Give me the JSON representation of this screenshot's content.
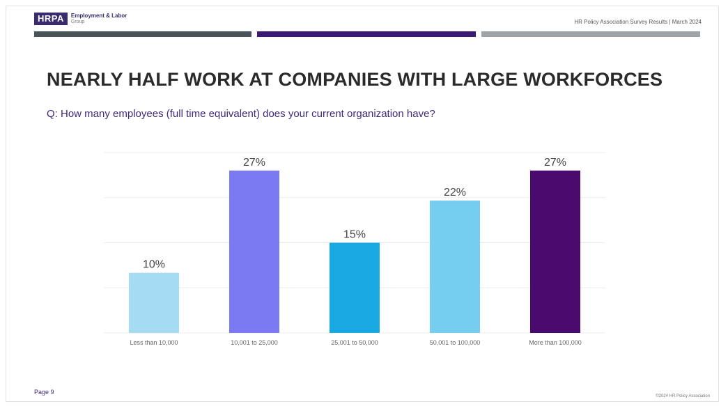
{
  "header": {
    "logo_text": "HRPA",
    "org_line1": "Employment & Labor",
    "org_line2": "Group",
    "report_info": "HR Policy Association Survey Results | March 2024"
  },
  "title": "NEARLY HALF WORK AT COMPANIES WITH LARGE WORKFORCES",
  "question": "Q: How many employees (full time equivalent) does your current organization have?",
  "footer": {
    "page": "Page 9",
    "copyright": "©2024 HR Policy Association"
  },
  "colors": {
    "stripe_1": "#4a5357",
    "stripe_2": "#3b1a73",
    "stripe_3": "#9ea3a6"
  },
  "chart_data": {
    "type": "bar",
    "categories": [
      "Less than 10,000",
      "10,001 to 25,000",
      "25,001 to 50,000",
      "50,001 to 100,000",
      "More than 100,000"
    ],
    "values": [
      10,
      27,
      15,
      22,
      27
    ],
    "value_labels": [
      "10%",
      "27%",
      "15%",
      "22%",
      "27%"
    ],
    "colors": [
      "#a6dcf3",
      "#7c7af2",
      "#18a9e3",
      "#75cdf0",
      "#4a0a6e"
    ],
    "ylim": [
      0,
      30
    ],
    "grid": true,
    "legend": "none"
  }
}
